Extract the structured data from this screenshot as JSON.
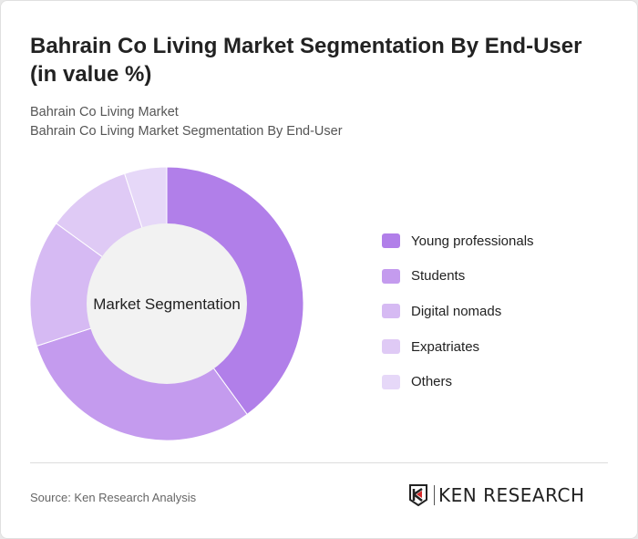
{
  "title": "Bahrain Co Living Market Segmentation By End-User (in value %)",
  "breadcrumb": [
    "Bahrain Co Living Market",
    "Bahrain Co Living Market Segmentation By End-User"
  ],
  "source": "Source: Ken Research Analysis",
  "logo_text": "KEN RESEARCH",
  "chart_data": {
    "type": "pie",
    "donut": true,
    "center_label": "Market Segmentation",
    "categories": [
      "Young professionals",
      "Students",
      "Digital nomads",
      "Expatriates",
      "Others"
    ],
    "values": [
      40,
      30,
      15,
      10,
      5
    ],
    "colors": [
      "#b17fe9",
      "#c49bee",
      "#d6baf3",
      "#dfcaf5",
      "#e6d8f8"
    ],
    "legend_position": "right"
  }
}
